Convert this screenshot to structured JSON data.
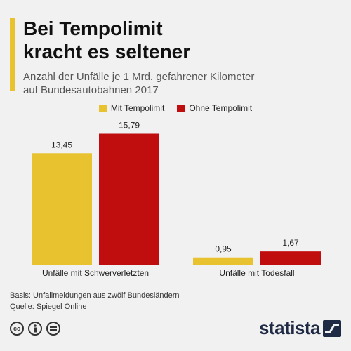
{
  "title_line1": "Bei Tempolimit",
  "title_line2": "kracht es seltener",
  "subtitle_line1": "Anzahl der Unfälle je 1 Mrd. gefahrener Kilometer",
  "subtitle_line2": "auf Bundesautobahnen 2017",
  "footer": {
    "basis": "Basis: Unfallmeldungen aus zwölf Bundesländern",
    "source": "Quelle: Spiegel Online"
  },
  "brand": {
    "name": "statista",
    "icons": [
      "cc-icon",
      "person-icon",
      "equals-icon"
    ]
  },
  "chart_data": {
    "type": "bar",
    "title": "",
    "xlabel": "",
    "ylabel": "",
    "ylim": [
      0,
      16
    ],
    "grid": false,
    "legend_position": "top-center",
    "categories": [
      "Unfälle mit Schwerverletzten",
      "Unfälle mit Todesfall"
    ],
    "series": [
      {
        "name": "Mit Tempolimit",
        "color": "#e8c22f",
        "values": [
          13.45,
          0.95
        ],
        "labels": [
          "13,45",
          "0,95"
        ]
      },
      {
        "name": "Ohne Tempolimit",
        "color": "#c00d0d",
        "values": [
          15.79,
          1.67
        ],
        "labels": [
          "15,79",
          "1,67"
        ]
      }
    ]
  }
}
